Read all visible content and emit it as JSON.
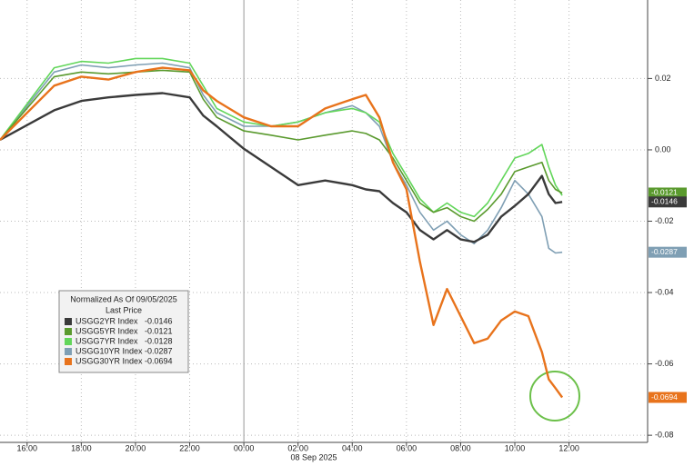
{
  "chart_data": {
    "type": "line",
    "x": [
      "2025-09-07T15:00",
      "2025-09-07T17:00",
      "2025-09-07T18:00",
      "2025-09-07T19:00",
      "2025-09-07T20:00",
      "2025-09-07T21:00",
      "2025-09-07T22:00",
      "2025-09-07T22:30",
      "2025-09-07T23:00",
      "2025-09-08T00:00",
      "2025-09-08T01:00",
      "2025-09-08T02:00",
      "2025-09-08T03:00",
      "2025-09-08T04:00",
      "2025-09-08T04:30",
      "2025-09-08T05:00",
      "2025-09-08T05:30",
      "2025-09-08T06:00",
      "2025-09-08T06:30",
      "2025-09-08T07:00",
      "2025-09-08T07:30",
      "2025-09-08T08:00",
      "2025-09-08T08:30",
      "2025-09-08T09:00",
      "2025-09-08T09:30",
      "2025-09-08T10:00",
      "2025-09-08T10:30",
      "2025-09-08T11:00",
      "2025-09-08T11:15",
      "2025-09-08T11:30",
      "2025-09-08T11:45"
    ],
    "xlim": [
      "2025-09-07T15:00",
      "2025-09-08T14:50"
    ],
    "xticks": [
      {
        "value": "2025-09-07T16:00",
        "label": "16:00"
      },
      {
        "value": "2025-09-07T18:00",
        "label": "18:00"
      },
      {
        "value": "2025-09-07T20:00",
        "label": "20:00"
      },
      {
        "value": "2025-09-07T22:00",
        "label": "22:00"
      },
      {
        "value": "2025-09-08T00:00",
        "label": "00:00"
      },
      {
        "value": "2025-09-08T02:00",
        "label": "02:00"
      },
      {
        "value": "2025-09-08T04:00",
        "label": "04:00"
      },
      {
        "value": "2025-09-08T06:00",
        "label": "06:00"
      },
      {
        "value": "2025-09-08T08:00",
        "label": "08:00"
      },
      {
        "value": "2025-09-08T10:00",
        "label": "10:00"
      },
      {
        "value": "2025-09-08T12:00",
        "label": "12:00"
      }
    ],
    "x_label": "08 Sep 2025",
    "ylim": [
      -0.082,
      0.042
    ],
    "yticks": [
      0.02,
      {
        "value": 0,
        "label": "0.00"
      },
      -0.02,
      -0.04,
      -0.06,
      -0.08
    ],
    "grid": true,
    "legend": {
      "title": "Normalized As Of 09/05/2025",
      "subtitle": "Last Price",
      "position": "lower left"
    },
    "series": [
      {
        "name": "USGG2YR Index",
        "last_price": "-0.0146",
        "color": "#3a3a3a",
        "values": [
          0.0028,
          0.0111,
          0.0137,
          0.0147,
          0.0154,
          0.0159,
          0.0147,
          0.0096,
          0.0066,
          0.0003,
          -0.0048,
          -0.0099,
          -0.0086,
          -0.0099,
          -0.0111,
          -0.0116,
          -0.0149,
          -0.0175,
          -0.0225,
          -0.0251,
          -0.0225,
          -0.0251,
          -0.0258,
          -0.0238,
          -0.0187,
          -0.0157,
          -0.0124,
          -0.0073,
          -0.0124,
          -0.0149,
          -0.0146
        ]
      },
      {
        "name": "USGG5YR Index",
        "last_price": "-0.0121",
        "color": "#5a9a2e",
        "values": [
          0.0028,
          0.0205,
          0.0218,
          0.0213,
          0.0218,
          0.0223,
          0.0218,
          0.0142,
          0.0091,
          0.0053,
          0.0041,
          0.0028,
          0.0041,
          0.0053,
          0.0046,
          0.0028,
          -0.0023,
          -0.0086,
          -0.0149,
          -0.0175,
          -0.0162,
          -0.0187,
          -0.02,
          -0.0167,
          -0.0124,
          -0.0061,
          -0.0048,
          -0.0035,
          -0.0086,
          -0.0111,
          -0.0121
        ]
      },
      {
        "name": "USGG7YR Index",
        "last_price": "-0.0128",
        "color": "#62d65a",
        "values": [
          0.0028,
          0.023,
          0.0248,
          0.0243,
          0.0256,
          0.0256,
          0.0243,
          0.018,
          0.0116,
          0.0078,
          0.0066,
          0.0078,
          0.0104,
          0.0116,
          0.0104,
          0.0078,
          -0.001,
          -0.0073,
          -0.0137,
          -0.0175,
          -0.0149,
          -0.0175,
          -0.0187,
          -0.0149,
          -0.0086,
          -0.0023,
          -0.001,
          0.0015,
          -0.0048,
          -0.0099,
          -0.0128
        ]
      },
      {
        "name": "USGG10YR Index",
        "last_price": "-0.0287",
        "color": "#7f9fb4",
        "values": [
          0.0028,
          0.0218,
          0.0238,
          0.023,
          0.0238,
          0.0243,
          0.023,
          0.0154,
          0.0104,
          0.0066,
          0.0066,
          0.0078,
          0.0104,
          0.0124,
          0.0104,
          0.0066,
          -0.0035,
          -0.0099,
          -0.0175,
          -0.0225,
          -0.02,
          -0.0238,
          -0.0263,
          -0.0225,
          -0.0162,
          -0.0086,
          -0.0124,
          -0.0187,
          -0.0276,
          -0.0289,
          -0.0287
        ]
      },
      {
        "name": "USGG30YR Index",
        "last_price": "-0.0694",
        "color": "#e8731c",
        "values": [
          0.0028,
          0.018,
          0.0205,
          0.0197,
          0.0218,
          0.023,
          0.0223,
          0.0167,
          0.0137,
          0.0091,
          0.0066,
          0.0066,
          0.0116,
          0.0142,
          0.0154,
          0.0091,
          -0.0035,
          -0.0111,
          -0.0314,
          -0.0491,
          -0.039,
          -0.0466,
          -0.0542,
          -0.0529,
          -0.0478,
          -0.0453,
          -0.0466,
          -0.0567,
          -0.0643,
          -0.0668,
          -0.0694
        ]
      }
    ]
  }
}
